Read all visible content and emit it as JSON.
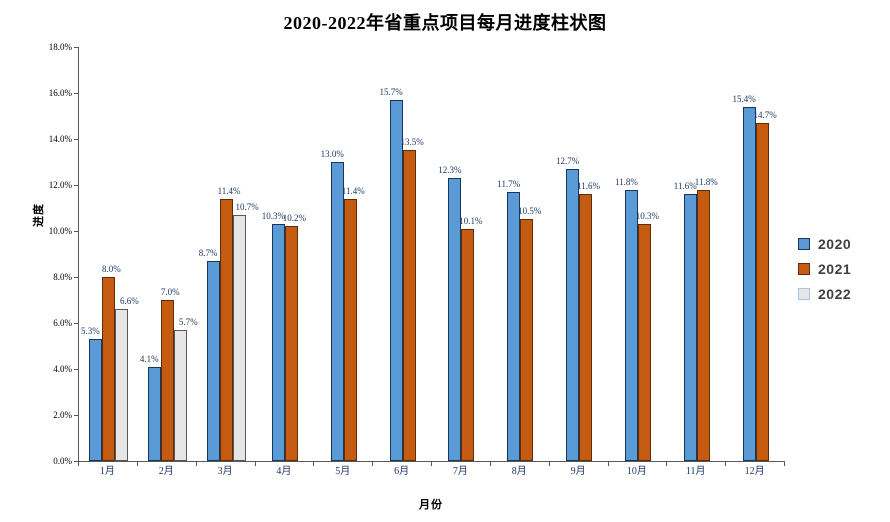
{
  "chart_data": {
    "type": "bar",
    "title": "2020-2022年省重点项目每月进度柱状图",
    "xlabel": "月份",
    "ylabel": "进度",
    "categories": [
      "1月",
      "2月",
      "3月",
      "4月",
      "5月",
      "6月",
      "7月",
      "8月",
      "9月",
      "10月",
      "11月",
      "12月"
    ],
    "series": [
      {
        "name": "2020",
        "color": "#5B9BD5",
        "border_color": "#17375E",
        "legend_border": "#17375E",
        "values": [
          5.3,
          4.1,
          8.7,
          10.3,
          13.0,
          15.7,
          12.3,
          11.7,
          12.7,
          11.8,
          11.6,
          15.4
        ]
      },
      {
        "name": "2021",
        "color": "#C55A11",
        "border_color": "#5E2C0B",
        "legend_border": "#5E2C0B",
        "values": [
          8.0,
          7.0,
          11.4,
          10.2,
          11.4,
          13.5,
          10.1,
          10.5,
          11.6,
          10.3,
          11.8,
          14.7
        ]
      },
      {
        "name": "2022",
        "color": "#E7E6E6",
        "border_color": "#595959",
        "legend_border": "#A8C6E0",
        "values": [
          6.6,
          5.7,
          10.7,
          null,
          null,
          null,
          null,
          null,
          null,
          null,
          null,
          null
        ]
      }
    ],
    "ylim": [
      0,
      18
    ],
    "ytick_step": 2,
    "ytick_labels": [
      "0.0%",
      "2.0%",
      "4.0%",
      "6.0%",
      "8.0%",
      "10.0%",
      "12.0%",
      "14.0%",
      "16.0%",
      "18.0%"
    ],
    "data_label_suffix": "%",
    "data_label_color": "#1F3864",
    "legend_position": "right",
    "grid": false
  }
}
